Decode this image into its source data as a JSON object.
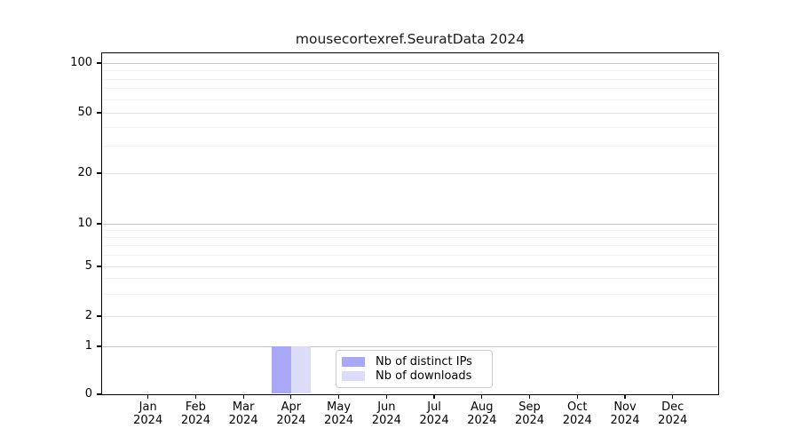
{
  "chart_data": {
    "type": "bar",
    "title": "mousecortexref.SeuratData 2024",
    "categories": [
      "Jan",
      "Feb",
      "Mar",
      "Apr",
      "May",
      "Jun",
      "Jul",
      "Aug",
      "Sep",
      "Oct",
      "Nov",
      "Dec"
    ],
    "x_tick_year": "2024",
    "series": [
      {
        "name": "Nb of distinct IPs",
        "color": "#a8a8f6",
        "values": [
          0,
          0,
          0,
          1,
          0,
          0,
          0,
          0,
          0,
          0,
          0,
          0
        ]
      },
      {
        "name": "Nb of downloads",
        "color": "#dcdcf8",
        "values": [
          0,
          0,
          0,
          1,
          0,
          0,
          0,
          0,
          0,
          0,
          0,
          0
        ]
      }
    ],
    "y_axis": {
      "scale": "symlog",
      "ticks": [
        0,
        1,
        2,
        5,
        10,
        20,
        50,
        100
      ],
      "minor_gridlines": [
        3,
        4,
        6,
        7,
        8,
        9,
        30,
        40,
        60,
        70,
        80,
        90
      ],
      "ylim": [
        0,
        115
      ]
    },
    "legend_position": "lower center",
    "grid": true
  },
  "colors": {
    "background": "#ffffff",
    "spine": "#000000",
    "text": "#000000",
    "grid_decade": "#c5c5c5",
    "grid_mid": "#e3e3e3",
    "grid_minor": "#f0f0f0",
    "legend_border": "#cccccc"
  }
}
